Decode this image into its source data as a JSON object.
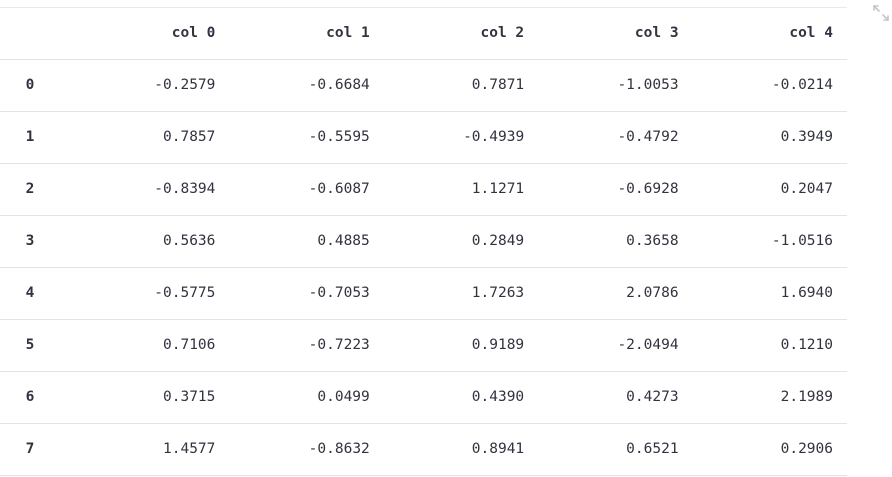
{
  "table": {
    "columns": [
      "col 0",
      "col 1",
      "col 2",
      "col 3",
      "col 4"
    ],
    "rows": [
      {
        "index": "0",
        "cells": [
          "-0.2579",
          "-0.6684",
          "0.7871",
          "-1.0053",
          "-0.0214"
        ]
      },
      {
        "index": "1",
        "cells": [
          "0.7857",
          "-0.5595",
          "-0.4939",
          "-0.4792",
          "0.3949"
        ]
      },
      {
        "index": "2",
        "cells": [
          "-0.8394",
          "-0.6087",
          "1.1271",
          "-0.6928",
          "0.2047"
        ]
      },
      {
        "index": "3",
        "cells": [
          "0.5636",
          "0.4885",
          "0.2849",
          "0.3658",
          "-1.0516"
        ]
      },
      {
        "index": "4",
        "cells": [
          "-0.5775",
          "-0.7053",
          "1.7263",
          "2.0786",
          "1.6940"
        ]
      },
      {
        "index": "5",
        "cells": [
          "0.7106",
          "-0.7223",
          "0.9189",
          "-2.0494",
          "0.1210"
        ]
      },
      {
        "index": "6",
        "cells": [
          "0.3715",
          "0.0499",
          "0.4390",
          "0.4273",
          "2.1989"
        ]
      },
      {
        "index": "7",
        "cells": [
          "1.4577",
          "-0.8632",
          "0.8941",
          "0.6521",
          "0.2906"
        ]
      }
    ]
  },
  "toolbar": {
    "expand_icon": "fullscreen-expand-icon"
  },
  "colors": {
    "text": "#31333f",
    "border": "#e0e3e9",
    "icon": "#c4c6cc"
  }
}
